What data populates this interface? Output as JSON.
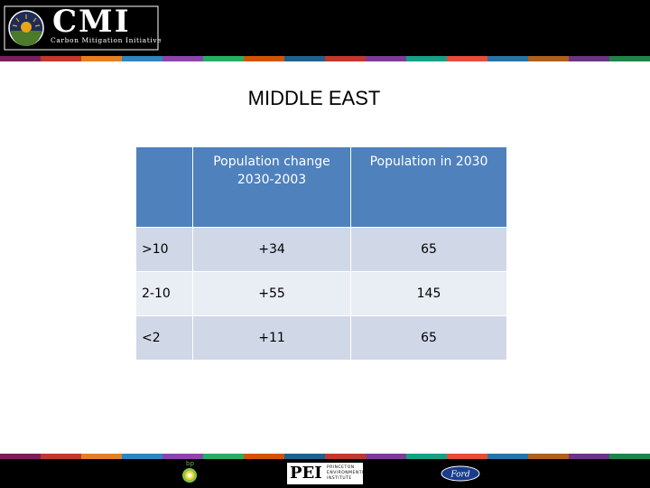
{
  "header": {
    "logo_main": "CMI",
    "logo_sub": "Carbon Mitigation Initiative",
    "strip_colors": [
      "#7a1f5c",
      "#c0392b",
      "#e67e22",
      "#2e86c1",
      "#8e44ad",
      "#27ae60",
      "#d35400",
      "#1f618d",
      "#c0392b",
      "#7d3c98",
      "#16a085",
      "#e74c3c",
      "#2874a6",
      "#af601a",
      "#6c3483",
      "#1e8449"
    ]
  },
  "slide": {
    "title": "MIDDLE EAST"
  },
  "table": {
    "columns": [
      "",
      "Population change 2030-2003",
      "Population in 2030"
    ],
    "rows": [
      [
        ">10",
        "+34",
        "65"
      ],
      [
        "2-10",
        "+55",
        "145"
      ],
      [
        "<2",
        "+11",
        "65"
      ]
    ]
  },
  "footer": {
    "logo_left": "bp",
    "logo_center": "PEI",
    "logo_center_sub": "PRINCETON ENVIRONMENTAL INSTITUTE",
    "logo_right": "Ford"
  }
}
